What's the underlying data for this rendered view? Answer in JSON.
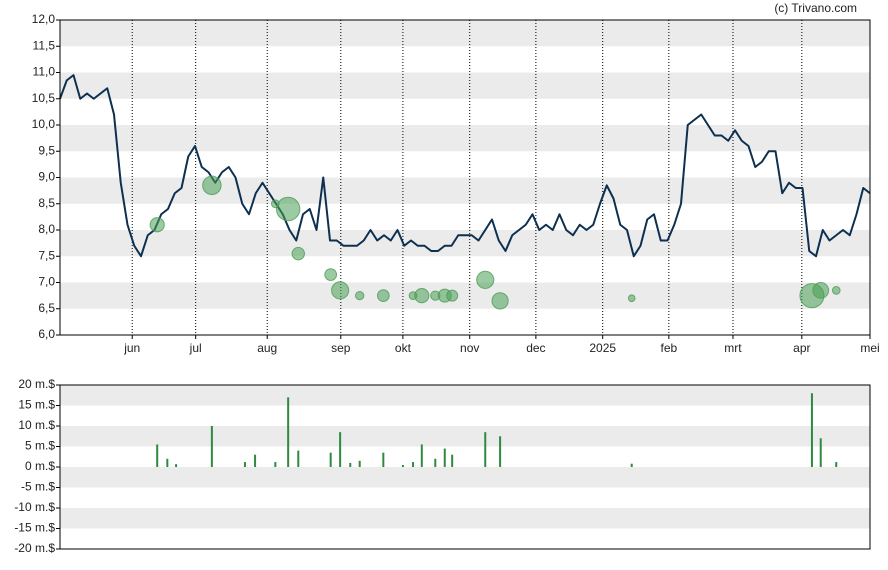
{
  "chart_data": [
    {
      "type": "line",
      "source": "(c) Trivano.com",
      "color": "#0d3050",
      "bubble_color": "#4a9e55",
      "values": [
        10.5,
        10.85,
        10.95,
        10.5,
        10.6,
        10.5,
        10.6,
        10.7,
        10.2,
        8.9,
        8.1,
        7.7,
        7.5,
        7.9,
        8.0,
        8.3,
        8.4,
        8.7,
        8.8,
        9.4,
        9.6,
        9.2,
        9.1,
        8.9,
        9.1,
        9.2,
        9.0,
        8.5,
        8.3,
        8.7,
        8.9,
        8.7,
        8.5,
        8.3,
        8.0,
        7.8,
        8.3,
        8.4,
        8.0,
        9.0,
        7.8,
        7.8,
        7.7,
        7.7,
        7.7,
        7.8,
        8.0,
        7.8,
        7.9,
        7.8,
        8.0,
        7.7,
        7.8,
        7.7,
        7.7,
        7.6,
        7.6,
        7.7,
        7.7,
        7.9,
        7.9,
        7.9,
        7.8,
        8.0,
        8.2,
        7.8,
        7.6,
        7.9,
        8.0,
        8.1,
        8.3,
        8.0,
        8.1,
        8.0,
        8.3,
        8.0,
        7.9,
        8.1,
        8.0,
        8.1,
        8.5,
        8.85,
        8.6,
        8.1,
        8.0,
        7.5,
        7.7,
        8.2,
        8.3,
        7.8,
        7.8,
        8.1,
        8.5,
        10.0,
        10.1,
        10.2,
        10.0,
        9.8,
        9.8,
        9.7,
        9.9,
        9.7,
        9.6,
        9.2,
        9.3,
        9.5,
        9.5,
        8.7,
        8.9,
        8.8,
        8.8,
        7.6,
        7.5,
        8.0,
        7.8,
        7.9,
        8.0,
        7.9,
        8.3,
        8.8,
        8.7
      ],
      "bubbles": {
        "y": [
          8.1,
          null,
          null,
          8.85,
          null,
          null,
          8.5,
          8.4,
          7.55,
          7.15,
          6.85,
          null,
          6.75,
          6.75,
          null,
          6.75,
          6.75,
          6.75,
          6.75,
          6.75,
          7.05,
          6.65,
          6.7,
          6.75,
          6.85,
          6.85
        ]
      },
      "xlim": [
        0,
        120
      ],
      "xticks": [
        {
          "value": 10.7,
          "label": "jun"
        },
        {
          "value": 20.1,
          "label": "jul"
        },
        {
          "value": 30.7,
          "label": "aug"
        },
        {
          "value": 41.6,
          "label": "sep"
        },
        {
          "value": 50.8,
          "label": "okt"
        },
        {
          "value": 60.7,
          "label": "nov"
        },
        {
          "value": 70.5,
          "label": "dec"
        },
        {
          "value": 80.4,
          "label": "2025"
        },
        {
          "value": 90.2,
          "label": "feb"
        },
        {
          "value": 99.7,
          "label": "mrt"
        },
        {
          "value": 109.9,
          "label": "apr"
        },
        {
          "value": 120,
          "label": "mei"
        }
      ],
      "ylim": [
        6,
        12
      ],
      "yticks": [
        {
          "value": 6,
          "label": "6,0"
        },
        {
          "value": 6.5,
          "label": "6,5"
        },
        {
          "value": 7,
          "label": "7,0"
        },
        {
          "value": 7.5,
          "label": "7,5"
        },
        {
          "value": 8,
          "label": "8,0"
        },
        {
          "value": 8.5,
          "label": "8,5"
        },
        {
          "value": 9,
          "label": "9,0"
        },
        {
          "value": 9.5,
          "label": "9,5"
        },
        {
          "value": 10,
          "label": "10,0"
        },
        {
          "value": 10.5,
          "label": "10,5"
        },
        {
          "value": 11,
          "label": "11,0"
        },
        {
          "value": 11.5,
          "label": "11,5"
        },
        {
          "value": 12,
          "label": "12,0"
        }
      ]
    },
    {
      "type": "bar",
      "color": "#2e8b3e",
      "x": [
        14.4,
        15.9,
        17.2,
        22.5,
        27.4,
        28.9,
        31.9,
        33.8,
        35.3,
        40.1,
        41.5,
        43.0,
        44.4,
        47.9,
        50.8,
        52.3,
        53.6,
        55.6,
        57.0,
        58.1,
        63.0,
        65.2,
        84.7,
        111.4,
        112.7,
        115.0
      ],
      "values": [
        5.5,
        2,
        0.7,
        10,
        1.2,
        3,
        1.2,
        17,
        4,
        3.5,
        8.5,
        1,
        1.5,
        3.5,
        0.5,
        1.2,
        5.5,
        2,
        4.5,
        3,
        8.5,
        7.5,
        0.8,
        18,
        7,
        1.2
      ],
      "xlim": [
        0,
        120
      ],
      "ylim": [
        -20,
        20
      ],
      "yticks": [
        {
          "value": -20,
          "label": "-20 m.$"
        },
        {
          "value": -15,
          "label": "-15 m.$"
        },
        {
          "value": -10,
          "label": "-10 m.$"
        },
        {
          "value": -5,
          "label": "-5 m.$"
        },
        {
          "value": 0,
          "label": "0 m.$"
        },
        {
          "value": 5,
          "label": "5 m.$"
        },
        {
          "value": 10,
          "label": "10 m.$"
        },
        {
          "value": 15,
          "label": "15 m.$"
        },
        {
          "value": 20,
          "label": "20 m.$"
        }
      ]
    }
  ]
}
